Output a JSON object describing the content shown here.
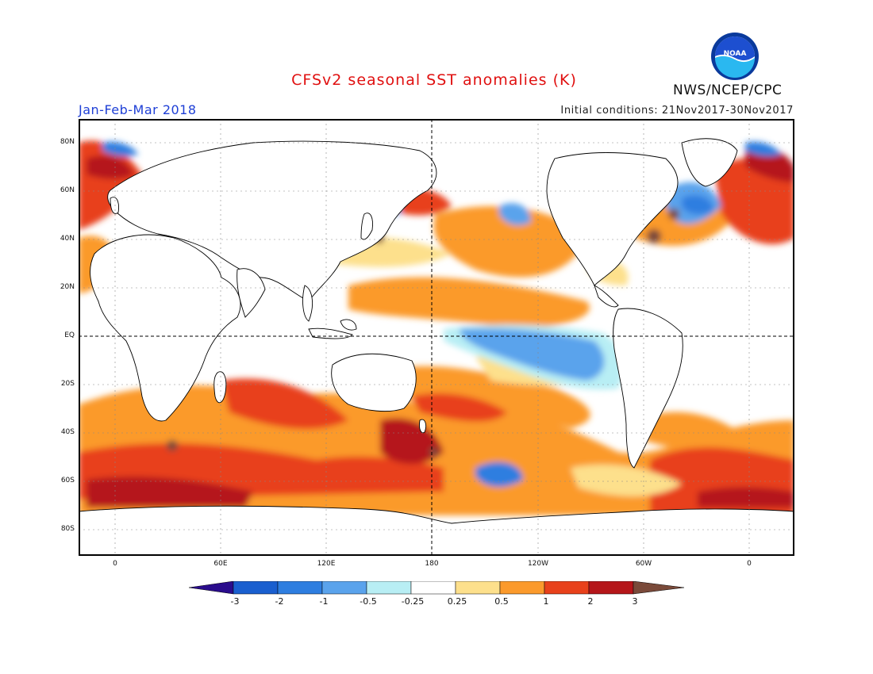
{
  "header": {
    "title": "CFSv2 seasonal SST anomalies (K)",
    "season": "Jan-Feb-Mar 2018",
    "initial_conditions": "Initial conditions: 21Nov2017-30Nov2017",
    "agency": "NWS/NCEP/CPC",
    "logo_text": "NOAA"
  },
  "map": {
    "lat_labels": [
      "80N",
      "60N",
      "40N",
      "20N",
      "EQ",
      "20S",
      "40S",
      "60S",
      "80S"
    ],
    "lon_labels": [
      "0",
      "60E",
      "120E",
      "180",
      "120W",
      "60W",
      "0"
    ]
  },
  "colorbar": {
    "labels": [
      "-3",
      "-2",
      "-1",
      "-0.5",
      "-0.25",
      "0.25",
      "0.5",
      "1",
      "2",
      "3"
    ],
    "colors": [
      "#2a0c8c",
      "#1a5fcf",
      "#2e7ee0",
      "#5aa3ec",
      "#b8eef4",
      "#ffffff",
      "#fde08c",
      "#fb9a2c",
      "#e8411b",
      "#b5161a",
      "#7a4a3a"
    ]
  },
  "colors": {
    "title": "#e01010",
    "season": "#1e3fd6",
    "land_outline": "#000000"
  }
}
